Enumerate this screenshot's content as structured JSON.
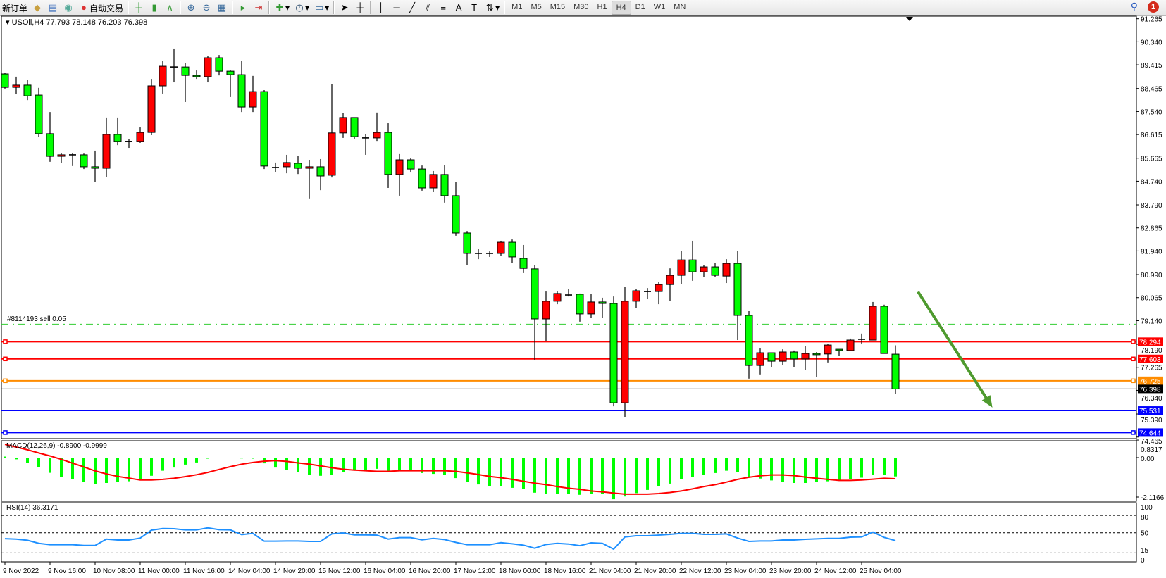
{
  "toolbar": {
    "new_order_label": "新订单",
    "auto_trading_label": "自动交易",
    "icons": [
      "new-order-icon",
      "metaeditor-icon",
      "terminal-icon",
      "signal-icon",
      "auto-trading-icon",
      "bar-chart-icon",
      "candlestick-icon",
      "line-chart-icon",
      "zoom-in-icon",
      "zoom-out-icon",
      "tile-windows-icon",
      "scroll-chart-icon",
      "chart-shift-icon",
      "indicators-icon",
      "periods-icon",
      "templates-icon",
      "cursor-icon",
      "crosshair-icon",
      "vertical-line-icon",
      "horizontal-line-icon",
      "trendline-icon",
      "fibonacci-fan-icon",
      "fibonacci-icon",
      "text-icon",
      "text-label-icon",
      "arrows-icon"
    ],
    "text_tool": "A",
    "timeframes": [
      "M1",
      "M5",
      "M15",
      "M30",
      "H1",
      "H4",
      "D1",
      "W1",
      "MN"
    ],
    "active_timeframe": "H4",
    "notification_count": "1"
  },
  "chart": {
    "header": "USOil,H4  77.793 78.148 76.203 76.398",
    "order_label": "#8114193 sell 0.05",
    "colors": {
      "bull_body": "#ff0000",
      "bear_body": "#00ff00",
      "order_line": "#32cd32",
      "tp_sl_red": "#ff0000",
      "orange": "#ff8c00",
      "blue": "#0000ff",
      "bid": "#000000",
      "arrow": "#4e9a2e"
    }
  },
  "chart_data": [
    {
      "type": "candlestick",
      "symbol": "USOil",
      "timeframe": "H4",
      "ylim": [
        74.465,
        91.265
      ],
      "price_ticks": [
        "91.265",
        "90.340",
        "89.415",
        "88.465",
        "87.540",
        "86.615",
        "85.665",
        "84.740",
        "83.790",
        "82.865",
        "81.940",
        "80.990",
        "80.065",
        "79.140",
        "78.190",
        "77.265",
        "76.340",
        "75.390",
        "74.465"
      ],
      "time_labels": [
        {
          "candle": 1,
          "label": "9 Nov 2022"
        },
        {
          "candle": 5,
          "label": "9 Nov 16:00"
        },
        {
          "candle": 9,
          "label": "10 Nov 08:00"
        },
        {
          "candle": 13,
          "label": "11 Nov 00:00"
        },
        {
          "candle": 17,
          "label": "11 Nov 16:00"
        },
        {
          "candle": 21,
          "label": "14 Nov 04:00"
        },
        {
          "candle": 25,
          "label": "14 Nov 20:00"
        },
        {
          "candle": 29,
          "label": "15 Nov 12:00"
        },
        {
          "candle": 33,
          "label": "16 Nov 04:00"
        },
        {
          "candle": 37,
          "label": "16 Nov 20:00"
        },
        {
          "candle": 41,
          "label": "17 Nov 12:00"
        },
        {
          "candle": 45,
          "label": "18 Nov 00:00"
        },
        {
          "candle": 49,
          "label": "18 Nov 16:00"
        },
        {
          "candle": 53,
          "label": "21 Nov 04:00"
        },
        {
          "candle": 57,
          "label": "21 Nov 20:00"
        },
        {
          "candle": 61,
          "label": "22 Nov 12:00"
        },
        {
          "candle": 65,
          "label": "23 Nov 04:00"
        },
        {
          "candle": 69,
          "label": "23 Nov 20:00"
        },
        {
          "candle": 73,
          "label": "24 Nov 12:00"
        },
        {
          "candle": 77,
          "label": "25 Nov 04:00"
        }
      ],
      "ohlc": [
        [
          89.05,
          89.08,
          88.46,
          88.51
        ],
        [
          88.51,
          88.94,
          88.23,
          88.6
        ],
        [
          88.6,
          88.82,
          88.0,
          88.17
        ],
        [
          88.2,
          88.49,
          86.53,
          86.65
        ],
        [
          86.65,
          87.52,
          85.52,
          85.74
        ],
        [
          85.74,
          85.88,
          85.46,
          85.8
        ],
        [
          85.8,
          85.88,
          85.35,
          85.8
        ],
        [
          85.8,
          85.85,
          85.23,
          85.32
        ],
        [
          85.32,
          85.97,
          84.7,
          85.26
        ],
        [
          85.26,
          87.3,
          84.92,
          86.62
        ],
        [
          86.62,
          87.3,
          86.19,
          86.34
        ],
        [
          86.34,
          86.42,
          86.08,
          86.34
        ],
        [
          86.34,
          86.9,
          86.28,
          86.7
        ],
        [
          86.7,
          88.85,
          86.59,
          88.57
        ],
        [
          88.57,
          89.56,
          88.26,
          89.36
        ],
        [
          89.33,
          90.07,
          88.71,
          89.33
        ],
        [
          89.33,
          89.5,
          87.92,
          88.99
        ],
        [
          88.99,
          89.19,
          88.85,
          88.94
        ],
        [
          88.94,
          89.76,
          88.71,
          89.7
        ],
        [
          89.7,
          89.81,
          88.99,
          89.16
        ],
        [
          89.16,
          89.19,
          88.12,
          89.02
        ],
        [
          89.02,
          89.56,
          87.52,
          87.72
        ],
        [
          87.72,
          88.97,
          87.52,
          88.34
        ],
        [
          88.34,
          88.4,
          85.23,
          85.35
        ],
        [
          85.29,
          85.49,
          85.12,
          85.29
        ],
        [
          85.32,
          85.8,
          85.06,
          85.49
        ],
        [
          85.46,
          85.77,
          85.03,
          85.26
        ],
        [
          85.26,
          85.6,
          84.05,
          85.32
        ],
        [
          85.32,
          85.63,
          84.38,
          84.95
        ],
        [
          84.98,
          88.65,
          84.89,
          86.68
        ],
        [
          86.68,
          87.47,
          86.48,
          87.3
        ],
        [
          87.3,
          87.3,
          86.45,
          86.53
        ],
        [
          86.48,
          86.62,
          85.8,
          86.48
        ],
        [
          86.48,
          87.5,
          86.36,
          86.7
        ],
        [
          86.7,
          87.07,
          84.47,
          85.01
        ],
        [
          85.01,
          85.83,
          84.16,
          85.6
        ],
        [
          85.6,
          85.66,
          85.09,
          85.23
        ],
        [
          85.23,
          85.37,
          84.36,
          84.47
        ],
        [
          84.47,
          85.15,
          84.3,
          85.01
        ],
        [
          85.01,
          85.4,
          83.88,
          84.16
        ],
        [
          84.16,
          84.72,
          82.55,
          82.66
        ],
        [
          82.66,
          82.74,
          81.36,
          81.84
        ],
        [
          81.84,
          82.01,
          81.61,
          81.84
        ],
        [
          81.84,
          81.92,
          81.7,
          81.84
        ],
        [
          81.84,
          82.35,
          81.73,
          82.29
        ],
        [
          82.29,
          82.4,
          81.47,
          81.7
        ],
        [
          81.64,
          82.18,
          81.05,
          81.24
        ],
        [
          81.22,
          81.36,
          77.57,
          79.21
        ],
        [
          79.21,
          80.31,
          78.33,
          79.92
        ],
        [
          79.92,
          80.31,
          79.8,
          80.23
        ],
        [
          80.17,
          80.4,
          80.11,
          80.17
        ],
        [
          80.2,
          80.23,
          79.1,
          79.41
        ],
        [
          79.41,
          80.2,
          79.24,
          79.89
        ],
        [
          79.89,
          80.06,
          79.24,
          79.83
        ],
        [
          79.83,
          80.11,
          75.7,
          75.84
        ],
        [
          75.84,
          80.48,
          75.25,
          79.92
        ],
        [
          79.92,
          80.4,
          79.66,
          80.34
        ],
        [
          80.31,
          80.45,
          80.0,
          80.31
        ],
        [
          80.31,
          80.68,
          79.8,
          80.59
        ],
        [
          80.59,
          81.24,
          79.92,
          80.96
        ],
        [
          80.96,
          81.95,
          80.62,
          81.58
        ],
        [
          81.58,
          82.35,
          80.74,
          81.1
        ],
        [
          81.1,
          81.36,
          80.88,
          81.3
        ],
        [
          81.3,
          81.47,
          80.88,
          80.96
        ],
        [
          80.93,
          81.61,
          80.65,
          81.44
        ],
        [
          81.44,
          81.95,
          78.36,
          79.35
        ],
        [
          79.35,
          79.52,
          76.81,
          77.34
        ],
        [
          77.34,
          78.02,
          76.98,
          77.85
        ],
        [
          77.85,
          77.85,
          77.26,
          77.51
        ],
        [
          77.51,
          77.99,
          77.37,
          77.88
        ],
        [
          77.88,
          77.94,
          77.26,
          77.6
        ],
        [
          77.6,
          78.13,
          77.17,
          77.82
        ],
        [
          77.82,
          77.88,
          76.89,
          77.77
        ],
        [
          77.8,
          78.19,
          77.46,
          78.16
        ],
        [
          77.99,
          77.99,
          77.71,
          77.94
        ],
        [
          77.94,
          78.42,
          77.91,
          78.36
        ],
        [
          78.39,
          78.62,
          78.19,
          78.39
        ],
        [
          78.36,
          79.89,
          78.36,
          79.72
        ],
        [
          79.72,
          79.78,
          77.82,
          77.82
        ],
        [
          77.793,
          78.148,
          76.203,
          76.398
        ]
      ],
      "horizontal_lines": [
        {
          "price": 79.0,
          "color": "#32cd32",
          "style": "dash-dot",
          "label": ""
        },
        {
          "price": 78.294,
          "color": "#ff0000",
          "style": "solid",
          "label": "78.294"
        },
        {
          "price": 77.603,
          "color": "#ff0000",
          "style": "solid",
          "label": "77.603"
        },
        {
          "price": 76.725,
          "color": "#ff8c00",
          "style": "solid",
          "label": "76.725"
        },
        {
          "price": 76.398,
          "color": "#000000",
          "style": "thin",
          "label": "76.398"
        },
        {
          "price": 75.531,
          "color": "#0000ff",
          "style": "solid",
          "label": "75.531"
        },
        {
          "price": 74.644,
          "color": "#0000ff",
          "style": "solid",
          "label": "74.644"
        }
      ],
      "annotation_arrow": {
        "from": {
          "candle": 82,
          "price": 80.3
        },
        "to": {
          "candle": 88.6,
          "price": 75.65
        },
        "color": "#4e9a2e"
      }
    },
    {
      "type": "bar+line",
      "title": "MACD(12,26,9) -0.8900 -0.9999",
      "ticks": [
        "0.8317",
        "0.00",
        "-2.1166"
      ],
      "histogram": [
        0.05,
        -0.08,
        -0.26,
        -0.46,
        -0.72,
        -0.9,
        -1.02,
        -1.16,
        -1.25,
        -1.2,
        -1.16,
        -1.12,
        -1.03,
        -0.86,
        -0.62,
        -0.47,
        -0.33,
        -0.23,
        -0.05,
        -0.03,
        -0.01,
        -0.04,
        -0.05,
        -0.27,
        -0.47,
        -0.6,
        -0.69,
        -0.8,
        -0.86,
        -0.8,
        -0.67,
        -0.59,
        -0.63,
        -0.53,
        -0.63,
        -0.63,
        -0.61,
        -0.73,
        -0.77,
        -0.83,
        -0.97,
        -1.16,
        -1.27,
        -1.36,
        -1.36,
        -1.43,
        -1.48,
        -1.66,
        -1.73,
        -1.73,
        -1.73,
        -1.76,
        -1.73,
        -1.73,
        -1.97,
        -1.84,
        -1.68,
        -1.53,
        -1.36,
        -1.23,
        -1.03,
        -0.93,
        -0.8,
        -0.73,
        -0.62,
        -0.69,
        -0.92,
        -0.99,
        -1.08,
        -1.16,
        -1.2,
        -1.2,
        -1.16,
        -1.12,
        -1.06,
        -1.03,
        -0.95,
        -0.8,
        -0.8,
        -0.89
      ],
      "signal": [
        0.63,
        0.5,
        0.37,
        0.22,
        0.08,
        -0.08,
        -0.26,
        -0.44,
        -0.63,
        -0.77,
        -0.89,
        -0.97,
        -1.06,
        -1.06,
        -1.03,
        -0.98,
        -0.9,
        -0.81,
        -0.7,
        -0.56,
        -0.43,
        -0.31,
        -0.23,
        -0.17,
        -0.14,
        -0.18,
        -0.25,
        -0.31,
        -0.39,
        -0.48,
        -0.55,
        -0.59,
        -0.62,
        -0.65,
        -0.65,
        -0.62,
        -0.62,
        -0.62,
        -0.62,
        -0.62,
        -0.65,
        -0.72,
        -0.8,
        -0.89,
        -0.95,
        -1.03,
        -1.12,
        -1.21,
        -1.28,
        -1.37,
        -1.45,
        -1.5,
        -1.58,
        -1.62,
        -1.68,
        -1.73,
        -1.73,
        -1.73,
        -1.7,
        -1.65,
        -1.58,
        -1.48,
        -1.37,
        -1.28,
        -1.16,
        -1.03,
        -0.93,
        -0.86,
        -0.82,
        -0.82,
        -0.85,
        -0.92,
        -0.98,
        -1.03,
        -1.08,
        -1.08,
        -1.06,
        -1.02,
        -0.98,
        -1.0
      ],
      "colors": {
        "histogram": "#00ff00",
        "signal": "#ff0000"
      }
    },
    {
      "type": "line",
      "title": "RSI(14) 36.3171",
      "ylim": [
        0,
        100
      ],
      "ticks": [
        "100",
        "80",
        "50",
        "15",
        "0"
      ],
      "levels": [
        80,
        50,
        15
      ],
      "values": [
        39.8,
        39.0,
        37.0,
        31.7,
        29.3,
        29.3,
        29.3,
        28.0,
        28.0,
        39.0,
        37.4,
        37.4,
        40.7,
        54.5,
        57.3,
        57.0,
        54.9,
        54.9,
        58.5,
        55.3,
        54.9,
        46.7,
        48.8,
        35.4,
        35.4,
        35.8,
        35.8,
        35.0,
        35.0,
        48.0,
        49.6,
        46.3,
        46.3,
        45.9,
        39.0,
        41.5,
        41.5,
        37.8,
        40.2,
        38.2,
        33.3,
        29.3,
        29.3,
        29.3,
        32.9,
        30.9,
        28.5,
        23.2,
        29.7,
        31.7,
        30.5,
        27.6,
        32.5,
        31.7,
        21.5,
        42.7,
        44.7,
        44.7,
        45.9,
        47.2,
        48.8,
        48.8,
        47.2,
        47.2,
        48.0,
        40.7,
        35.0,
        35.8,
        35.8,
        37.4,
        37.4,
        38.6,
        39.4,
        40.2,
        40.2,
        42.3,
        42.7,
        51.2,
        41.9,
        36.3171
      ],
      "color": "#1e90ff"
    }
  ]
}
